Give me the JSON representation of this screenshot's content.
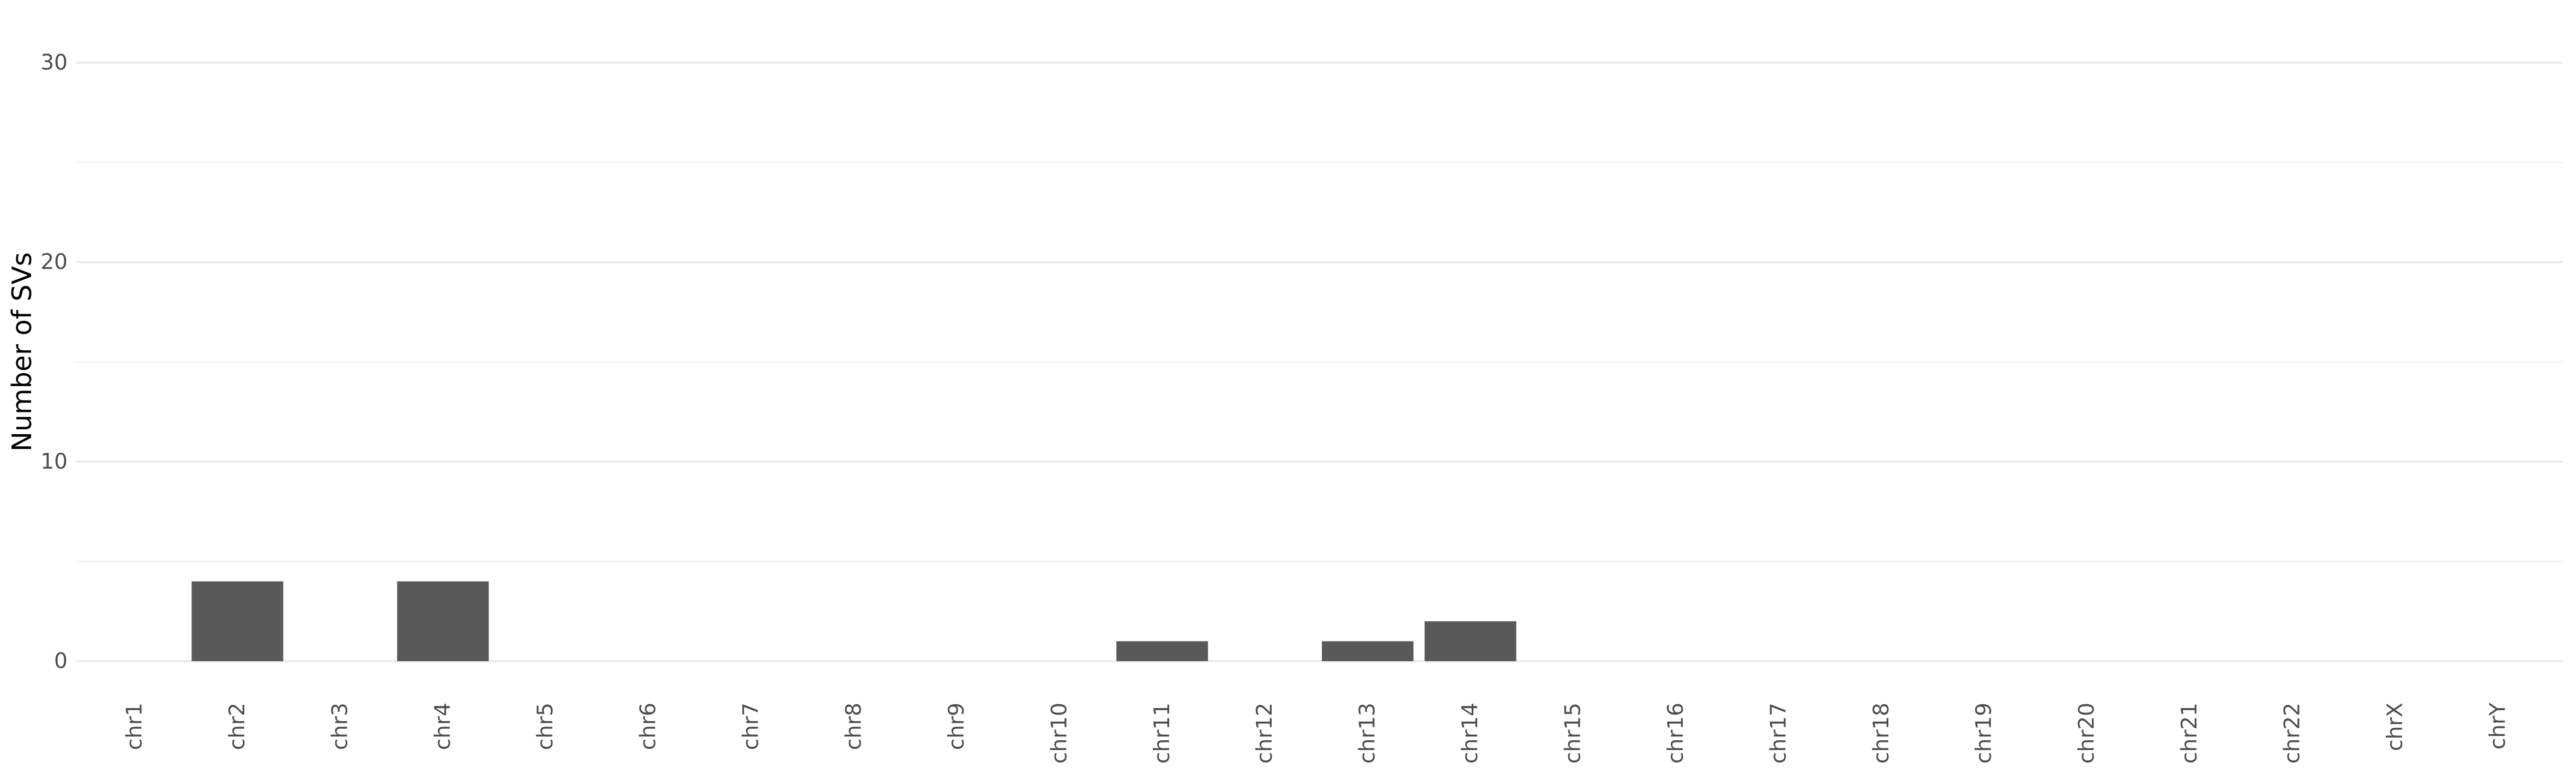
{
  "chart_data": {
    "type": "bar",
    "title": "",
    "xlabel": "",
    "ylabel": "Number of SVs",
    "categories": [
      "chr1",
      "chr2",
      "chr3",
      "chr4",
      "chr5",
      "chr6",
      "chr7",
      "chr8",
      "chr9",
      "chr10",
      "chr11",
      "chr12",
      "chr13",
      "chr14",
      "chr15",
      "chr16",
      "chr17",
      "chr18",
      "chr19",
      "chr20",
      "chr21",
      "chr22",
      "chrX",
      "chrY"
    ],
    "values": [
      0,
      4,
      0,
      4,
      0,
      0,
      0,
      0,
      0,
      0,
      1,
      0,
      1,
      2,
      0,
      0,
      0,
      0,
      0,
      0,
      0,
      0,
      0,
      0
    ],
    "yticks": [
      0,
      10,
      20,
      30
    ],
    "ylim": [
      0,
      30
    ],
    "grid": true,
    "legend": "none",
    "colors": {
      "bar": "#595959",
      "grid_major": "#ebebeb",
      "grid_minor": "#f3f3f3",
      "tick_text": "#4d4d4d"
    }
  }
}
